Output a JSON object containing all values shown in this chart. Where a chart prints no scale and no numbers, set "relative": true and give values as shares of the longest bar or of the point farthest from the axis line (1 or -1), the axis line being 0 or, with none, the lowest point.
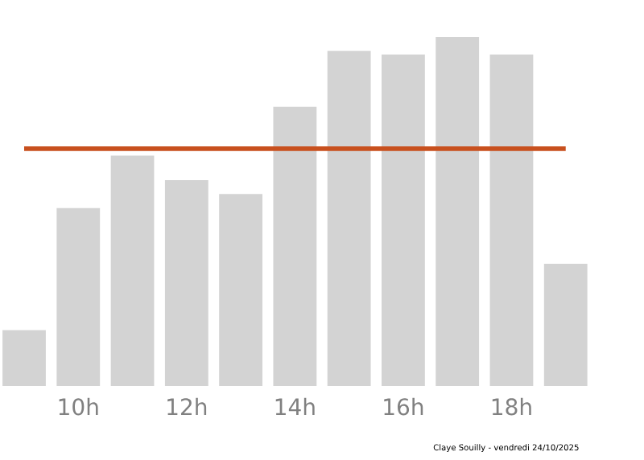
{
  "chart_data": {
    "type": "bar",
    "relative": true,
    "color": "#d3d3d3",
    "categories": [
      null,
      "10h",
      null,
      "12h",
      null,
      "14h",
      null,
      "16h",
      null,
      "18h",
      null
    ],
    "values": [
      0.16,
      0.51,
      0.66,
      0.59,
      0.55,
      0.8,
      0.96,
      0.95,
      1,
      0.95,
      0.35
    ],
    "ref_lines": [
      {
        "axis": "y",
        "value": 0.68,
        "color": "#c8501e"
      }
    ],
    "annotations": [
      "Claye Souilly - vendredi 24/10/2025"
    ]
  }
}
